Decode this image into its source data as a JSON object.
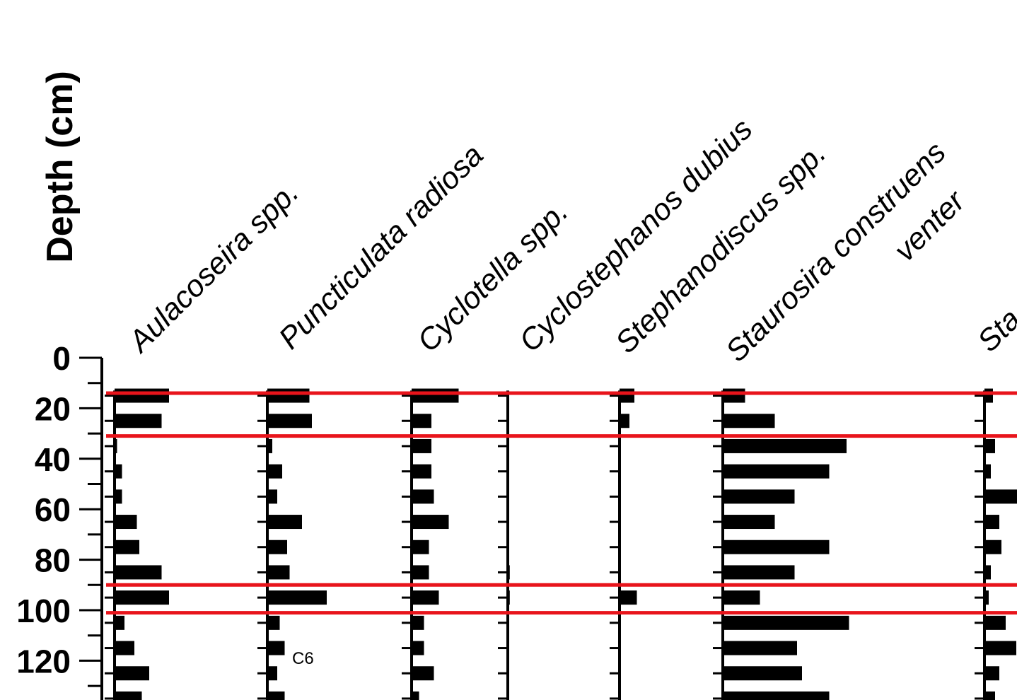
{
  "chart_data": {
    "type": "bar",
    "ylabel": "Depth (cm)",
    "y_ticks": [
      "0",
      "20",
      "40",
      "60",
      "80",
      "100",
      "120"
    ],
    "ylim": [
      0,
      135
    ],
    "depths": [
      15,
      25,
      35,
      45,
      55,
      65,
      75,
      85,
      95,
      105,
      115,
      125,
      135
    ],
    "zones": [
      14,
      31,
      90,
      101
    ],
    "zone_color": "#e8141b",
    "bar_color": "#000000",
    "annotation": "C6",
    "series": [
      {
        "name": "Aulacoseira spp.",
        "values": [
          22,
          19,
          1,
          3,
          3,
          9,
          10,
          19,
          22,
          4,
          8,
          14,
          11
        ]
      },
      {
        "name": "Puncticulata radiosa",
        "values": [
          17,
          18,
          2,
          6,
          4,
          14,
          8,
          9,
          24,
          5,
          7,
          4,
          7
        ]
      },
      {
        "name": "Cyclotella spp.",
        "values": [
          19,
          8,
          8,
          8,
          9,
          15,
          7,
          7,
          11,
          5,
          5,
          9,
          3
        ]
      },
      {
        "name": "Cyclostephanos dubius",
        "values": [
          0,
          0,
          0,
          0,
          0,
          0,
          0,
          0.8,
          0.8,
          0,
          0,
          0,
          0
        ]
      },
      {
        "name": "Stephanodiscus  spp.",
        "values": [
          6,
          4,
          0,
          0,
          0,
          0,
          0,
          0,
          7,
          0,
          0,
          0,
          0
        ]
      },
      {
        "name": "Staurosira construens",
        "values": [
          9,
          21,
          50,
          43,
          29,
          21,
          43,
          29,
          15,
          51,
          30,
          32,
          43
        ]
      },
      {
        "name": "venter",
        "values": [
          0,
          0,
          0,
          0,
          0,
          0,
          0,
          0,
          0,
          0,
          0,
          0,
          0
        ]
      },
      {
        "name": "Sta",
        "values": [
          4,
          0,
          5,
          3,
          16,
          7,
          8,
          3,
          2,
          10,
          15,
          7,
          5
        ]
      }
    ]
  }
}
